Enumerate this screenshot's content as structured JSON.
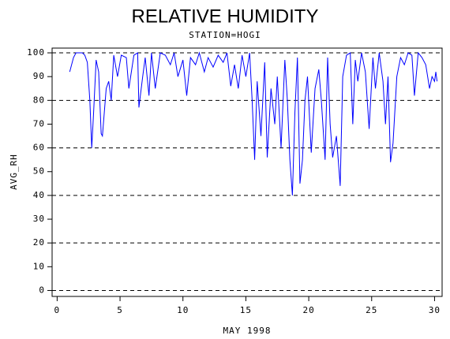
{
  "chart_data": {
    "type": "line",
    "title": "RELATIVE HUMIDITY",
    "subtitle": "STATION=HOGI",
    "x_label": "MAY 1998",
    "y_label": "AVG_RH",
    "xlim": [
      -0.4,
      30.6
    ],
    "xticks": [
      0,
      5,
      10,
      15,
      20,
      25,
      30
    ],
    "ylim": [
      -2.5,
      102
    ],
    "yticks": [
      0,
      10,
      20,
      30,
      40,
      50,
      60,
      70,
      80,
      90,
      100
    ],
    "grid_lines": [
      0,
      20,
      40,
      60,
      80,
      100
    ],
    "x": [
      1.0,
      1.3,
      1.5,
      2.0,
      2.2,
      2.4,
      2.6,
      2.75,
      2.9,
      3.1,
      3.3,
      3.5,
      3.6,
      3.9,
      4.1,
      4.3,
      4.5,
      4.8,
      5.1,
      5.5,
      5.7,
      6.1,
      6.4,
      6.5,
      6.8,
      7.0,
      7.3,
      7.5,
      7.8,
      8.2,
      8.6,
      9.0,
      9.3,
      9.6,
      10.0,
      10.3,
      10.6,
      11.0,
      11.3,
      11.7,
      12.0,
      12.4,
      12.8,
      13.2,
      13.5,
      13.8,
      14.1,
      14.4,
      14.7,
      15.0,
      15.3,
      15.5,
      15.7,
      15.9,
      16.2,
      16.5,
      16.7,
      17.0,
      17.3,
      17.5,
      17.8,
      18.1,
      18.3,
      18.5,
      18.7,
      18.9,
      19.1,
      19.3,
      19.5,
      19.7,
      19.9,
      20.2,
      20.5,
      20.8,
      21.0,
      21.3,
      21.5,
      21.7,
      21.9,
      22.2,
      22.5,
      22.7,
      23.0,
      23.3,
      23.5,
      23.7,
      23.9,
      24.2,
      24.5,
      24.8,
      25.1,
      25.3,
      25.6,
      25.9,
      26.1,
      26.3,
      26.5,
      26.7,
      27.0,
      27.3,
      27.6,
      27.9,
      28.2,
      28.4,
      28.7,
      29.0,
      29.3,
      29.6,
      29.8,
      30.0,
      30.1,
      30.2
    ],
    "series": [
      {
        "name": "AVG_RH",
        "color": "#0000ff",
        "values": [
          92,
          98,
          100,
          100,
          99,
          96,
          80,
          60,
          75,
          97,
          92,
          66,
          65,
          85,
          88,
          80,
          99,
          90,
          99,
          98,
          85,
          99,
          100,
          77,
          90,
          98,
          82,
          100,
          85,
          100,
          99,
          95,
          100,
          90,
          97,
          82,
          98,
          95,
          100,
          92,
          98,
          94,
          99,
          96,
          100,
          86,
          95,
          85,
          99,
          90,
          100,
          80,
          55,
          88,
          65,
          96,
          56,
          85,
          70,
          90,
          60,
          97,
          80,
          55,
          40,
          75,
          98,
          45,
          55,
          80,
          90,
          58,
          85,
          93,
          80,
          55,
          98,
          70,
          56,
          65,
          44,
          90,
          99,
          100,
          70,
          97,
          88,
          100,
          92,
          68,
          98,
          85,
          100,
          88,
          70,
          90,
          54,
          62,
          90,
          98,
          95,
          100,
          99,
          82,
          100,
          98,
          95,
          85,
          90,
          88,
          92,
          88
        ]
      }
    ]
  }
}
